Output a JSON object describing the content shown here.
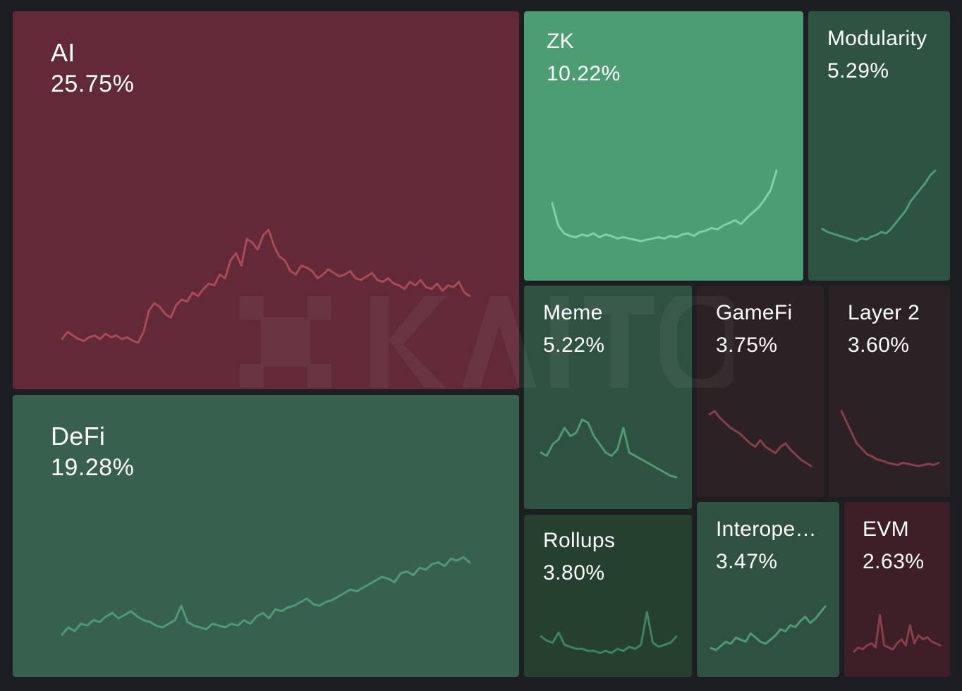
{
  "chart_data": {
    "type": "treemap",
    "tiles": [
      {
        "id": "ai",
        "label": "AI",
        "value": "25.75%",
        "trend": "down",
        "color": "#622a36",
        "line": "#a84b57",
        "spark": [
          14,
          18,
          16,
          14,
          13,
          15,
          16,
          14,
          17,
          15,
          16,
          14,
          15,
          13,
          12,
          18,
          30,
          34,
          32,
          28,
          26,
          33,
          36,
          35,
          40,
          38,
          42,
          45,
          44,
          50,
          48,
          58,
          62,
          55,
          70,
          68,
          64,
          72,
          75,
          66,
          60,
          58,
          52,
          50,
          55,
          54,
          52,
          48,
          50,
          53,
          51,
          49,
          50,
          52,
          48,
          47,
          49,
          51,
          47,
          46,
          48,
          45,
          44,
          42,
          46,
          44,
          47,
          43,
          42,
          45,
          41,
          44,
          43,
          46,
          40,
          38
        ]
      },
      {
        "id": "defi",
        "label": "DeFi",
        "value": "19.28%",
        "trend": "up",
        "color": "#37614e",
        "line": "#4e9a76",
        "spark": [
          10,
          14,
          12,
          16,
          15,
          18,
          17,
          20,
          22,
          19,
          21,
          23,
          20,
          18,
          17,
          15,
          14,
          16,
          18,
          26,
          17,
          15,
          14,
          13,
          16,
          15,
          14,
          16,
          15,
          18,
          16,
          20,
          22,
          19,
          24,
          23,
          25,
          26,
          28,
          30,
          27,
          26,
          28,
          29,
          31,
          33,
          35,
          34,
          36,
          38,
          40,
          42,
          41,
          39,
          44,
          45,
          43,
          47,
          46,
          49,
          50,
          48,
          52,
          51,
          53,
          50
        ]
      },
      {
        "id": "zk",
        "label": "ZK",
        "value": "10.22%",
        "trend": "up",
        "color": "#4c9e72",
        "line": "#7ed2a6",
        "spark": [
          45,
          28,
          22,
          20,
          19,
          21,
          20,
          22,
          19,
          21,
          20,
          18,
          19,
          18,
          17,
          16,
          17,
          18,
          19,
          18,
          20,
          19,
          21,
          22,
          20,
          23,
          24,
          26,
          25,
          28,
          30,
          32,
          29,
          34,
          38,
          42,
          48,
          55,
          70
        ]
      },
      {
        "id": "modularity",
        "label": "Modularity",
        "value": "5.29%",
        "trend": "up",
        "color": "#2d5442",
        "line": "#4e9a76",
        "spark": [
          20,
          18,
          17,
          16,
          15,
          14,
          13,
          12,
          14,
          13,
          15,
          16,
          18,
          17,
          20,
          24,
          28,
          32,
          38,
          42,
          46,
          50,
          55,
          58
        ]
      },
      {
        "id": "meme",
        "label": "Meme",
        "value": "5.22%",
        "trend": "up",
        "color": "#2f5140",
        "line": "#4e9a76",
        "spark": [
          30,
          28,
          35,
          38,
          45,
          40,
          42,
          50,
          48,
          40,
          35,
          30,
          28,
          32,
          45,
          30,
          28,
          26,
          24,
          22,
          20,
          18,
          16,
          15
        ]
      },
      {
        "id": "gamefi",
        "label": "GameFi",
        "value": "3.75%",
        "trend": "down",
        "color": "#2c2124",
        "line": "#86404a",
        "spark": [
          50,
          52,
          48,
          45,
          42,
          40,
          38,
          35,
          32,
          30,
          34,
          30,
          28,
          26,
          30,
          32,
          28,
          25,
          22,
          20,
          18
        ]
      },
      {
        "id": "layer2",
        "label": "Layer 2",
        "value": "3.60%",
        "trend": "down",
        "color": "#2c2124",
        "line": "#86404a",
        "spark": [
          60,
          50,
          40,
          30,
          25,
          20,
          18,
          15,
          14,
          12,
          11,
          10,
          12,
          11,
          10,
          9,
          10,
          11,
          10,
          12
        ]
      },
      {
        "id": "rollups",
        "label": "Rollups",
        "value": "3.80%",
        "trend": "up",
        "color": "#25402f",
        "line": "#3f8261",
        "spark": [
          18,
          16,
          15,
          20,
          14,
          13,
          12,
          12,
          11,
          11,
          10,
          11,
          10,
          12,
          11,
          13,
          12,
          14,
          30,
          15,
          13,
          14,
          15,
          18
        ]
      },
      {
        "id": "interop",
        "label": "Interope…",
        "value": "3.47%",
        "trend": "up",
        "color": "#2f5140",
        "line": "#4e9a76",
        "spark": [
          15,
          14,
          16,
          18,
          17,
          20,
          19,
          18,
          22,
          20,
          18,
          17,
          19,
          21,
          24,
          23,
          26,
          25,
          28,
          30,
          27,
          29,
          32,
          35
        ]
      },
      {
        "id": "evm",
        "label": "EVM",
        "value": "2.63%",
        "trend": "up",
        "color": "#3e1e27",
        "line": "#86404a",
        "spark": [
          12,
          14,
          13,
          15,
          16,
          14,
          30,
          15,
          14,
          13,
          16,
          18,
          15,
          25,
          16,
          20,
          18,
          19,
          17,
          16,
          15
        ]
      }
    ]
  }
}
